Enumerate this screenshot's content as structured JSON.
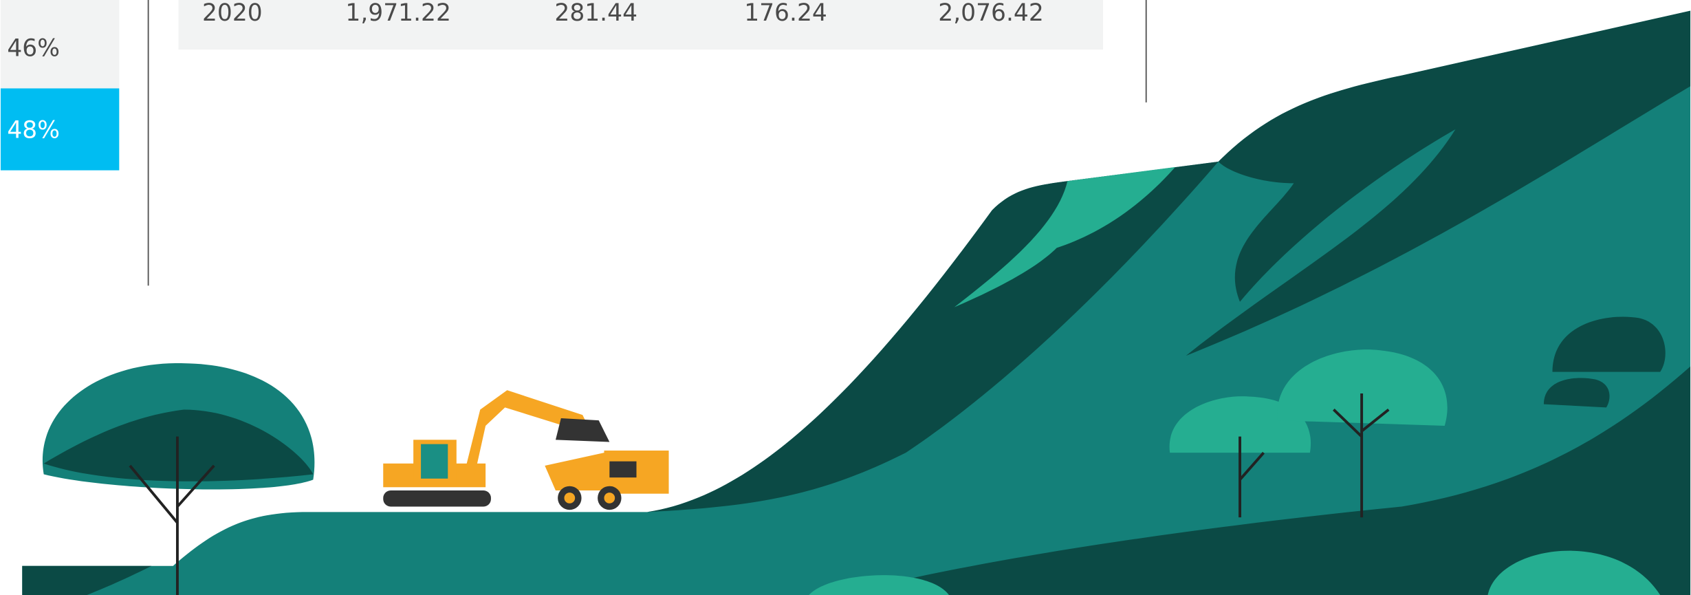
{
  "left_panel": {
    "items": [
      "46%",
      "48%"
    ]
  },
  "table": {
    "rows": [
      [
        "2020",
        "1,971.22",
        "281.44",
        "176.24",
        "2,076.42"
      ]
    ]
  }
}
